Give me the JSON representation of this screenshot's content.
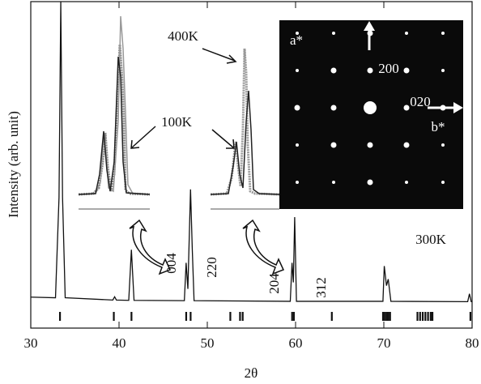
{
  "chart_data": {
    "type": "line",
    "x_label": "2θ",
    "y_label": "Intensity (arb. unit)",
    "xlim": [
      30,
      80
    ],
    "xticks": [
      30,
      40,
      50,
      60,
      70,
      80
    ],
    "ylim": [
      0,
      100
    ],
    "color": "#111111",
    "x": [
      30,
      32.8,
      33.2,
      33.4,
      33.6,
      33.9,
      39.3,
      39.5,
      39.7,
      41.1,
      41.4,
      41.7,
      47.4,
      47.6,
      47.8,
      48.1,
      48.3,
      48.5,
      59.4,
      59.6,
      59.75,
      59.9,
      60.1,
      69.9,
      70.05,
      70.3,
      70.5,
      70.8,
      79.5,
      79.7,
      79.9,
      80
    ],
    "values": [
      9.5,
      9.3,
      40,
      100,
      40,
      9.3,
      8.6,
      9.6,
      8.6,
      8.5,
      24,
      8.5,
      8.4,
      20,
      12,
      42.5,
      24,
      8.4,
      8.2,
      20,
      14,
      34,
      8.2,
      8.2,
      19,
      13,
      15,
      8.2,
      8.1,
      10.5,
      8.1,
      8.1
    ],
    "reflections": [
      33.3,
      39.4,
      41.4,
      47.6,
      48.1,
      52.6,
      53.7,
      54.0,
      59.6,
      59.8,
      64.1,
      69.9,
      70.1,
      70.3,
      70.5,
      70.7,
      73.8,
      74.1,
      74.4,
      74.7,
      75.0,
      75.3,
      75.5,
      79.8
    ],
    "annotations": [
      "004",
      "220",
      "204",
      "312",
      "300K",
      "400K",
      "100K"
    ],
    "inset_labels": [
      "a*",
      "200",
      "020",
      "b*"
    ]
  }
}
